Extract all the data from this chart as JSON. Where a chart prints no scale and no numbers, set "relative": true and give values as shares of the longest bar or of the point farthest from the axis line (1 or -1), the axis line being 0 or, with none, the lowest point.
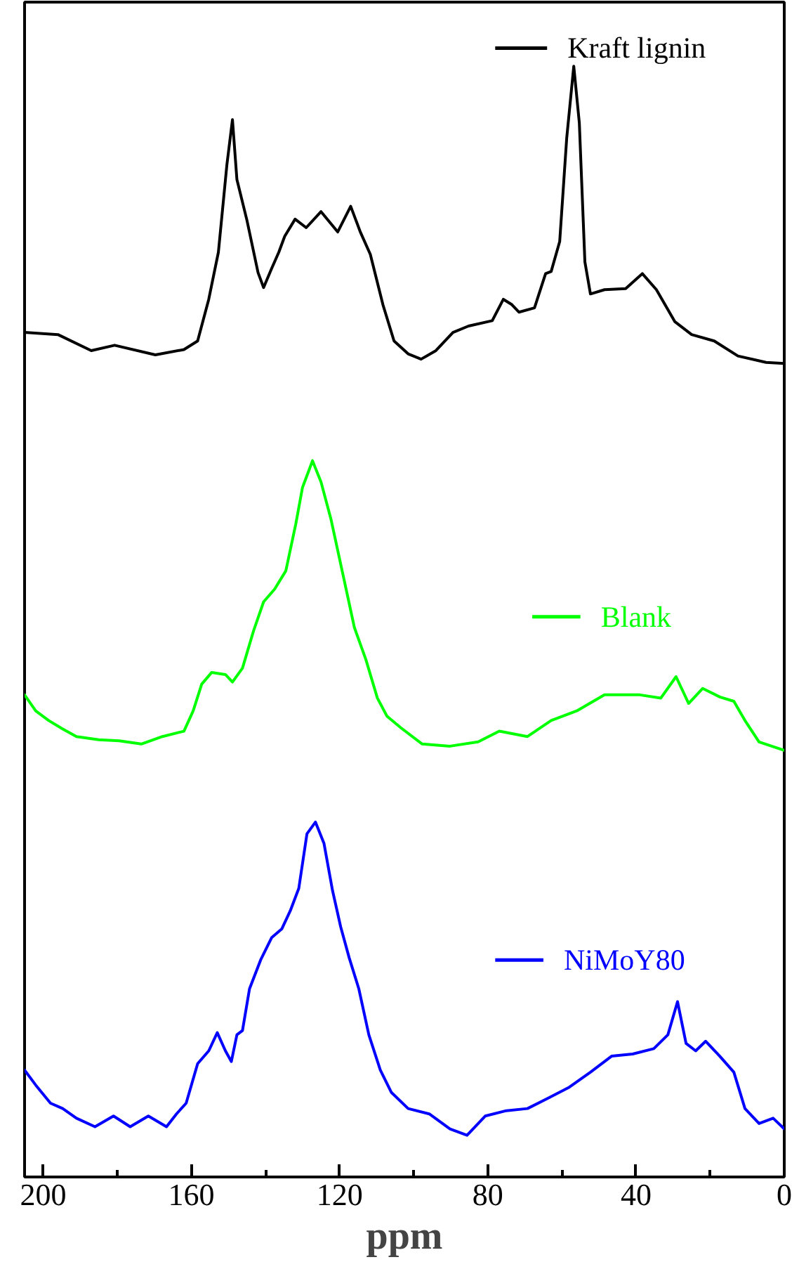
{
  "chart_data": {
    "type": "line",
    "relative": true,
    "xlabel": "ppm",
    "legend": "right",
    "xlim": [
      205,
      0
    ],
    "xticks": [
      200,
      160,
      120,
      80,
      40,
      0
    ],
    "series": [
      {
        "name": "Kraft lignin",
        "color": "#000000",
        "x": [
          205,
          196,
          187,
          180.7,
          169.7,
          162,
          158.3,
          155.3,
          152.7,
          150.4,
          148.9,
          147.7,
          145,
          142,
          140.5,
          138.3,
          136.4,
          134.8,
          132,
          129,
          125,
          120.5,
          117,
          114.4,
          111.7,
          108.3,
          105.3,
          101.5,
          98,
          94,
          89.4,
          85.2,
          78.8,
          75.8,
          73.5,
          71.6,
          67.4,
          64.4,
          62.9,
          60.6,
          58.7,
          56.8,
          55.3,
          53.8,
          52.3,
          48.5,
          42.8,
          38.3,
          34.5,
          29.5,
          25,
          18.9,
          12.5,
          4.9,
          0
        ],
        "values": [
          0.751,
          0.749,
          0.734,
          0.739,
          0.73,
          0.735,
          0.743,
          0.782,
          0.826,
          0.908,
          0.95,
          0.894,
          0.856,
          0.807,
          0.793,
          0.811,
          0.826,
          0.841,
          0.857,
          0.849,
          0.864,
          0.845,
          0.869,
          0.845,
          0.824,
          0.777,
          0.743,
          0.731,
          0.726,
          0.734,
          0.751,
          0.757,
          0.762,
          0.782,
          0.777,
          0.77,
          0.774,
          0.806,
          0.808,
          0.836,
          0.933,
          1.0,
          0.947,
          0.817,
          0.787,
          0.791,
          0.792,
          0.806,
          0.791,
          0.761,
          0.749,
          0.743,
          0.729,
          0.723,
          0.722
        ]
      },
      {
        "name": "Blank",
        "color": "#00ff00",
        "x": [
          205,
          202,
          198.5,
          194.7,
          191,
          185,
          179.5,
          173.5,
          167.8,
          162,
          159.5,
          157.2,
          154.5,
          150.8,
          148.9,
          146.2,
          143.2,
          140.5,
          137.5,
          134.5,
          131.8,
          130,
          127.3,
          125,
          122.3,
          119.3,
          116,
          112.9,
          109.8,
          107.2,
          103.4,
          97.7,
          90.2,
          82.6,
          76.9,
          69.3,
          62.9,
          56,
          48.5,
          39,
          33.3,
          29.2,
          25.8,
          22,
          17.4,
          13.6,
          10.6,
          6.8,
          0
        ],
        "values": [
          0.412,
          0.397,
          0.388,
          0.38,
          0.373,
          0.37,
          0.369,
          0.366,
          0.373,
          0.378,
          0.397,
          0.422,
          0.433,
          0.431,
          0.424,
          0.437,
          0.472,
          0.499,
          0.511,
          0.528,
          0.572,
          0.606,
          0.631,
          0.611,
          0.576,
          0.528,
          0.475,
          0.445,
          0.409,
          0.392,
          0.381,
          0.366,
          0.364,
          0.368,
          0.378,
          0.373,
          0.388,
          0.397,
          0.412,
          0.412,
          0.409,
          0.429,
          0.404,
          0.418,
          0.41,
          0.406,
          0.388,
          0.368,
          0.36
        ]
      },
      {
        "name": "NiMoY80",
        "color": "#0000ff",
        "x": [
          205,
          202,
          198,
          194.7,
          191,
          186,
          181,
          176.5,
          171.6,
          166.7,
          164,
          161.4,
          158.3,
          155.3,
          153,
          150.8,
          149.2,
          147.7,
          146.2,
          144.3,
          141.3,
          138.3,
          135.6,
          133.3,
          131,
          128.8,
          126.5,
          124.2,
          121.9,
          119.7,
          117.4,
          114.8,
          112.1,
          109,
          106,
          101.5,
          95.8,
          90.2,
          85.6,
          80.7,
          75,
          69.3,
          63.6,
          58,
          52.3,
          46.6,
          40.9,
          35.2,
          31.4,
          28.8,
          26.5,
          23.9,
          21.2,
          17.4,
          13.6,
          10.6,
          6.8,
          3,
          0
        ],
        "values": [
          0.061,
          0.047,
          0.03,
          0.025,
          0.016,
          0.008,
          0.018,
          0.008,
          0.018,
          0.008,
          0.02,
          0.03,
          0.067,
          0.079,
          0.096,
          0.079,
          0.069,
          0.094,
          0.098,
          0.137,
          0.164,
          0.185,
          0.193,
          0.21,
          0.231,
          0.282,
          0.293,
          0.273,
          0.229,
          0.195,
          0.166,
          0.137,
          0.094,
          0.061,
          0.04,
          0.025,
          0.02,
          0.006,
          0.0,
          0.018,
          0.023,
          0.025,
          0.035,
          0.045,
          0.059,
          0.074,
          0.076,
          0.081,
          0.094,
          0.125,
          0.086,
          0.079,
          0.088,
          0.074,
          0.059,
          0.025,
          0.011,
          0.016,
          0.006
        ]
      }
    ]
  }
}
